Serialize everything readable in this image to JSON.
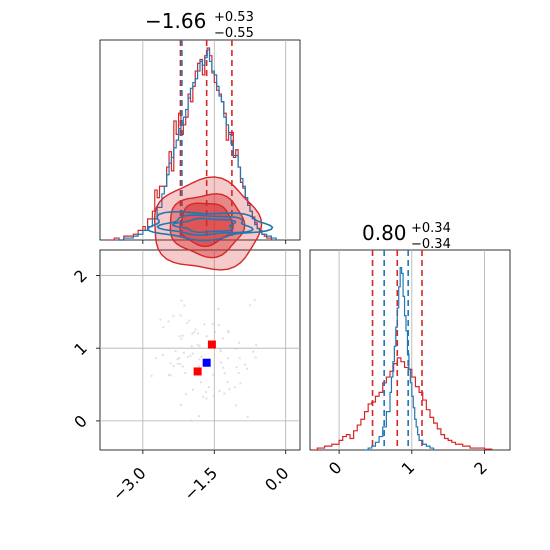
{
  "chart_data": [
    {
      "type": "corner",
      "panel": "marginal-param1",
      "title": {
        "median": "−1.66",
        "upper": "+0.53",
        "lower": "−0.55"
      },
      "xlim": [
        -3.9,
        0.3
      ],
      "series": [
        {
          "name": "",
          "color": "#d62728",
          "hist_step": [
            [
              -3.7,
              0.0
            ],
            [
              -3.6,
              0.01
            ],
            [
              -3.5,
              0.0
            ],
            [
              -3.4,
              0.02
            ],
            [
              -3.3,
              0.02
            ],
            [
              -3.2,
              0.03
            ],
            [
              -3.1,
              0.05
            ],
            [
              -3.0,
              0.07
            ],
            [
              -2.95,
              0.05
            ],
            [
              -2.9,
              0.11
            ],
            [
              -2.8,
              0.15
            ],
            [
              -2.75,
              0.26
            ],
            [
              -2.7,
              0.22
            ],
            [
              -2.65,
              0.28
            ],
            [
              -2.55,
              0.28
            ],
            [
              -2.5,
              0.38
            ],
            [
              -2.45,
              0.46
            ],
            [
              -2.4,
              0.36
            ],
            [
              -2.35,
              0.62
            ],
            [
              -2.3,
              0.55
            ],
            [
              -2.25,
              0.66
            ],
            [
              -2.2,
              0.55
            ],
            [
              -2.15,
              0.6
            ],
            [
              -2.1,
              0.64
            ],
            [
              -2.05,
              0.76
            ],
            [
              -2.0,
              0.72
            ],
            [
              -1.95,
              0.8
            ],
            [
              -1.9,
              0.88
            ],
            [
              -1.85,
              0.92
            ],
            [
              -1.8,
              0.94
            ],
            [
              -1.75,
              0.86
            ],
            [
              -1.7,
              0.96
            ],
            [
              -1.65,
              1.0
            ],
            [
              -1.6,
              0.96
            ],
            [
              -1.55,
              0.87
            ],
            [
              -1.5,
              0.82
            ],
            [
              -1.45,
              0.78
            ],
            [
              -1.4,
              0.76
            ],
            [
              -1.35,
              0.72
            ],
            [
              -1.3,
              0.66
            ],
            [
              -1.25,
              0.52
            ],
            [
              -1.2,
              0.56
            ],
            [
              -1.1,
              0.43
            ],
            [
              -1.05,
              0.47
            ],
            [
              -1.0,
              0.38
            ],
            [
              -0.95,
              0.3
            ],
            [
              -0.9,
              0.27
            ],
            [
              -0.85,
              0.22
            ],
            [
              -0.8,
              0.19
            ],
            [
              -0.75,
              0.15
            ],
            [
              -0.7,
              0.12
            ],
            [
              -0.65,
              0.09
            ],
            [
              -0.6,
              0.06
            ],
            [
              -0.55,
              0.05
            ],
            [
              -0.5,
              0.03
            ],
            [
              -0.45,
              0.02
            ],
            [
              -0.4,
              0.01
            ],
            [
              -0.35,
              0.01
            ],
            [
              -0.3,
              0.0
            ]
          ],
          "quantiles": [
            -2.21,
            -1.66,
            -1.13
          ]
        },
        {
          "name": "",
          "color": "#1f77b4",
          "hist_step": [
            [
              -3.6,
              0.0
            ],
            [
              -3.4,
              0.01
            ],
            [
              -3.2,
              0.02
            ],
            [
              -3.1,
              0.03
            ],
            [
              -3.0,
              0.05
            ],
            [
              -2.9,
              0.07
            ],
            [
              -2.8,
              0.11
            ],
            [
              -2.7,
              0.17
            ],
            [
              -2.6,
              0.24
            ],
            [
              -2.55,
              0.28
            ],
            [
              -2.5,
              0.34
            ],
            [
              -2.45,
              0.4
            ],
            [
              -2.4,
              0.43
            ],
            [
              -2.35,
              0.48
            ],
            [
              -2.3,
              0.52
            ],
            [
              -2.25,
              0.58
            ],
            [
              -2.2,
              0.6
            ],
            [
              -2.15,
              0.64
            ],
            [
              -2.1,
              0.68
            ],
            [
              -2.05,
              0.74
            ],
            [
              -2.0,
              0.79
            ],
            [
              -1.95,
              0.82
            ],
            [
              -1.9,
              0.84
            ],
            [
              -1.85,
              0.88
            ],
            [
              -1.8,
              0.93
            ],
            [
              -1.75,
              0.91
            ],
            [
              -1.7,
              0.95
            ],
            [
              -1.65,
              0.99
            ],
            [
              -1.6,
              0.93
            ],
            [
              -1.55,
              0.88
            ],
            [
              -1.5,
              0.86
            ],
            [
              -1.45,
              0.8
            ],
            [
              -1.4,
              0.75
            ],
            [
              -1.35,
              0.72
            ],
            [
              -1.3,
              0.64
            ],
            [
              -1.25,
              0.6
            ],
            [
              -1.2,
              0.55
            ],
            [
              -1.15,
              0.5
            ],
            [
              -1.1,
              0.44
            ],
            [
              -1.0,
              0.38
            ],
            [
              -0.95,
              0.32
            ],
            [
              -0.9,
              0.28
            ],
            [
              -0.85,
              0.22
            ],
            [
              -0.8,
              0.18
            ],
            [
              -0.75,
              0.15
            ],
            [
              -0.7,
              0.11
            ],
            [
              -0.65,
              0.08
            ],
            [
              -0.6,
              0.06
            ],
            [
              -0.55,
              0.04
            ],
            [
              -0.5,
              0.03
            ],
            [
              -0.4,
              0.02
            ],
            [
              -0.3,
              0.01
            ],
            [
              -0.2,
              0.0
            ]
          ],
          "quantiles": [
            -2.18
          ]
        }
      ]
    },
    {
      "type": "corner",
      "panel": "marginal-param2",
      "title": {
        "median": "0.80",
        "upper": "+0.34",
        "lower": "−0.34"
      },
      "xlim": [
        -0.4,
        2.35
      ],
      "xticks": [
        "0",
        "1",
        "2"
      ],
      "series": [
        {
          "name": "",
          "color": "#d62728",
          "hist_step": [
            [
              -0.35,
              0.0
            ],
            [
              -0.3,
              0.01
            ],
            [
              -0.2,
              0.02
            ],
            [
              -0.1,
              0.03
            ],
            [
              0.0,
              0.05
            ],
            [
              0.05,
              0.07
            ],
            [
              0.1,
              0.08
            ],
            [
              0.15,
              0.06
            ],
            [
              0.2,
              0.1
            ],
            [
              0.25,
              0.13
            ],
            [
              0.3,
              0.16
            ],
            [
              0.35,
              0.2
            ],
            [
              0.4,
              0.24
            ],
            [
              0.45,
              0.25
            ],
            [
              0.5,
              0.28
            ],
            [
              0.55,
              0.3
            ],
            [
              0.6,
              0.35
            ],
            [
              0.65,
              0.38
            ],
            [
              0.7,
              0.41
            ],
            [
              0.75,
              0.45
            ],
            [
              0.8,
              0.48
            ],
            [
              0.85,
              0.46
            ],
            [
              0.9,
              0.43
            ],
            [
              0.95,
              0.42
            ],
            [
              1.0,
              0.38
            ],
            [
              1.05,
              0.33
            ],
            [
              1.1,
              0.3
            ],
            [
              1.15,
              0.26
            ],
            [
              1.2,
              0.21
            ],
            [
              1.25,
              0.17
            ],
            [
              1.3,
              0.14
            ],
            [
              1.35,
              0.11
            ],
            [
              1.4,
              0.08
            ],
            [
              1.45,
              0.06
            ],
            [
              1.5,
              0.05
            ],
            [
              1.55,
              0.04
            ],
            [
              1.6,
              0.03
            ],
            [
              1.7,
              0.02
            ],
            [
              1.8,
              0.01
            ],
            [
              1.9,
              0.01
            ],
            [
              2.0,
              0.005
            ],
            [
              2.1,
              0.0
            ]
          ],
          "quantiles": [
            0.46,
            0.8,
            1.14
          ]
        },
        {
          "name": "",
          "color": "#1f77b4",
          "hist_step": [
            [
              0.35,
              0.0
            ],
            [
              0.4,
              0.01
            ],
            [
              0.45,
              0.02
            ],
            [
              0.5,
              0.04
            ],
            [
              0.55,
              0.07
            ],
            [
              0.6,
              0.12
            ],
            [
              0.65,
              0.2
            ],
            [
              0.7,
              0.3
            ],
            [
              0.72,
              0.38
            ],
            [
              0.74,
              0.46
            ],
            [
              0.76,
              0.54
            ],
            [
              0.78,
              0.64
            ],
            [
              0.8,
              0.74
            ],
            [
              0.82,
              0.85
            ],
            [
              0.84,
              0.95
            ],
            [
              0.86,
              0.92
            ],
            [
              0.88,
              0.8
            ],
            [
              0.9,
              0.7
            ],
            [
              0.92,
              0.62
            ],
            [
              0.94,
              0.5
            ],
            [
              0.96,
              0.42
            ],
            [
              0.98,
              0.35
            ],
            [
              1.0,
              0.28
            ],
            [
              1.02,
              0.22
            ],
            [
              1.04,
              0.16
            ],
            [
              1.06,
              0.12
            ],
            [
              1.08,
              0.08
            ],
            [
              1.1,
              0.05
            ],
            [
              1.15,
              0.03
            ],
            [
              1.2,
              0.02
            ],
            [
              1.25,
              0.01
            ],
            [
              1.3,
              0.0
            ]
          ],
          "quantiles": [
            0.62,
            0.95
          ]
        }
      ]
    },
    {
      "type": "corner",
      "panel": "joint-param1-param2",
      "xlim": [
        -3.9,
        0.3
      ],
      "ylim": [
        -0.4,
        2.35
      ],
      "xticks": [
        "−3.0",
        "−1.5",
        "0.0"
      ],
      "yticks": [
        "0",
        "1",
        "2"
      ],
      "grid": true,
      "series": [
        {
          "name": "",
          "color": "#d62728",
          "contours": [
            {
              "center": [
                -1.66,
                0.82
              ],
              "rx": 1.12,
              "ry": 0.95,
              "fill_opacity": 0.45
            },
            {
              "center": [
                -1.66,
                0.83
              ],
              "rx": 0.78,
              "ry": 0.65,
              "fill_opacity": 0.75
            },
            {
              "center": [
                -1.68,
                0.85
              ],
              "rx": 0.55,
              "ry": 0.45,
              "fill_opacity": 0.95
            }
          ],
          "markers": [
            [
              -1.55,
              1.05
            ],
            [
              -1.85,
              0.68
            ]
          ]
        },
        {
          "name": "",
          "color": "#1f77b4",
          "contours": [
            {
              "center": [
                -1.66,
                0.82
              ],
              "rx": 1.22,
              "ry": 0.28,
              "fill_opacity": 0.0
            },
            {
              "center": [
                -1.66,
                0.82
              ],
              "rx": 0.9,
              "ry": 0.2,
              "fill_opacity": 0.0
            },
            {
              "center": [
                -1.66,
                0.82
              ],
              "rx": 0.6,
              "ry": 0.14,
              "fill_opacity": 0.0
            }
          ],
          "markers": [
            [
              -1.66,
              0.8
            ]
          ]
        }
      ]
    }
  ]
}
